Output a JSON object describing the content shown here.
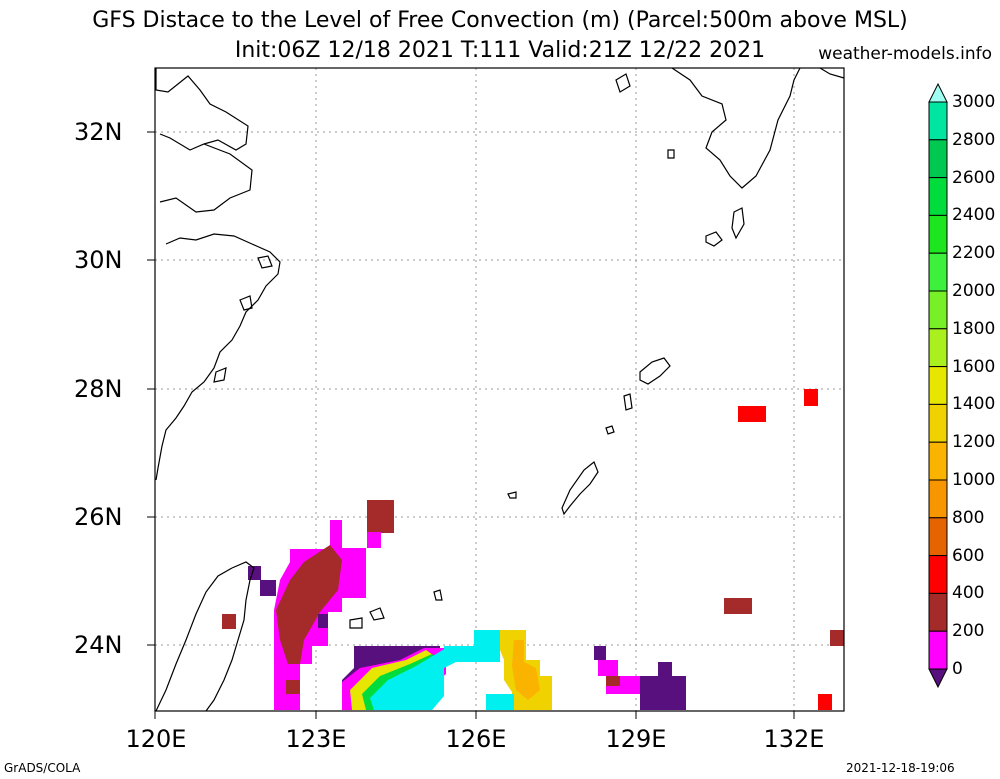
{
  "title": {
    "line1": "GFS Distace to the Level of Free Convection (m) (Parcel:500m above MSL)",
    "line2": "Init:06Z 12/18 2021 T:111 Valid:21Z 12/22 2021",
    "site": "weather-models.info"
  },
  "axes": {
    "lat_labels": [
      "32N",
      "30N",
      "28N",
      "26N",
      "24N"
    ],
    "lon_labels": [
      "120E",
      "123E",
      "126E",
      "129E",
      "132E"
    ]
  },
  "footer": {
    "left": "GrADS/COLA",
    "right": "2021-12-18-19:06"
  },
  "colorbar": {
    "labels": [
      "3000",
      "2800",
      "2600",
      "2400",
      "2200",
      "2000",
      "1800",
      "1600",
      "1400",
      "1200",
      "1000",
      "800",
      "600",
      "400",
      "200",
      "0"
    ],
    "colors": [
      "#a0fff0",
      "#00e6a0",
      "#00c850",
      "#00dc3c",
      "#1ee61e",
      "#3cf03c",
      "#78f028",
      "#aaf01e",
      "#e6e600",
      "#f0d200",
      "#fab400",
      "#f89600",
      "#e66400",
      "#ff0000",
      "#a52a2a",
      "#ff00ff",
      "#58107e"
    ]
  }
}
